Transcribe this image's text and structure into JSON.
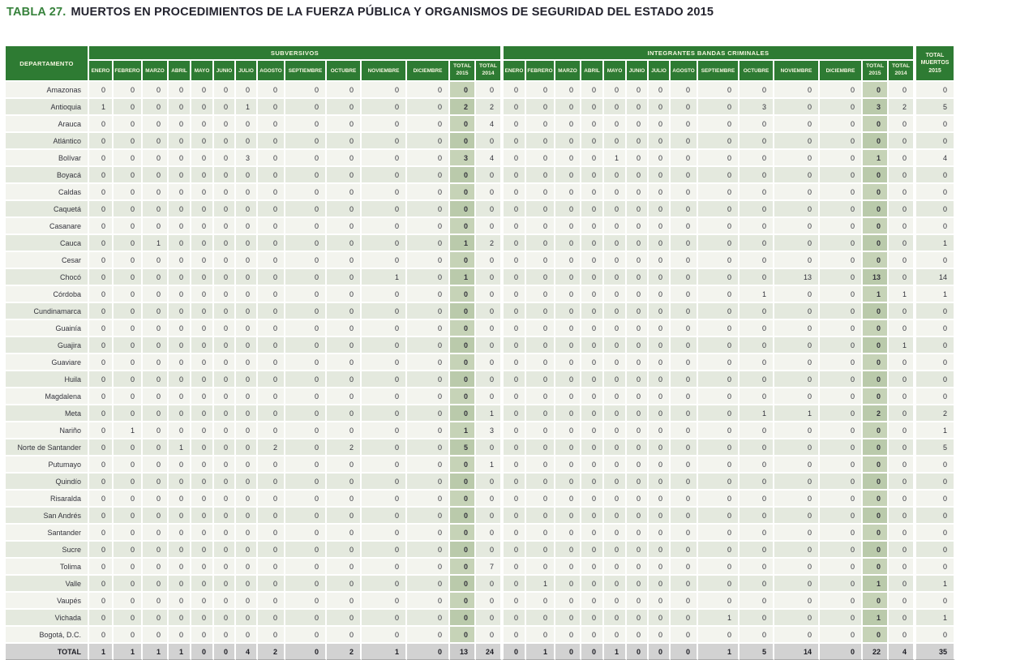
{
  "title": {
    "tag": "TABLA 27.",
    "text": "MUERTOS EN PROCEDIMIENTOS DE LA FUERZA PÚBLICA Y ORGANISMOS DE SEGURIDAD DEL ESTADO 2015"
  },
  "colors": {
    "header_green": "#2E7B33",
    "title_green": "#37823C",
    "row_light": "#F3F4EE",
    "row_dark": "#E4E9DE",
    "total_2015_col_light": "#C6D3B7",
    "total_2015_col_dark": "#BACAAB",
    "total_row_gray": "#D2D2D2"
  },
  "table": {
    "department_header": "DEPARTAMENTO",
    "groups": {
      "subversivos": "SUBVERSIVOS",
      "bandas": "INTEGRANTES BANDAS CRIMINALES",
      "total_muertos": "TOTAL MUERTOS 2015"
    },
    "months": [
      "ENERO",
      "FEBRERO",
      "MARZO",
      "ABRIL",
      "MAYO",
      "JUNIO",
      "JULIO",
      "AGOSTO",
      "SEPTIEMBRE",
      "OCTUBRE",
      "NOVIEMBRE",
      "DICIEMBRE"
    ],
    "total_2015_label": "TOTAL 2015",
    "total_2014_label": "TOTAL 2014",
    "rows": [
      {
        "dept": "Amazonas",
        "sub": [
          0,
          0,
          0,
          0,
          0,
          0,
          0,
          0,
          0,
          0,
          0,
          0
        ],
        "sub_total_2015": 0,
        "sub_total_2014": 0,
        "ban": [
          0,
          0,
          0,
          0,
          0,
          0,
          0,
          0,
          0,
          0,
          0,
          0
        ],
        "ban_total_2015": 0,
        "ban_total_2014": 0,
        "total_muertos": 0
      },
      {
        "dept": "Antioquia",
        "sub": [
          1,
          0,
          0,
          0,
          0,
          0,
          1,
          0,
          0,
          0,
          0,
          0
        ],
        "sub_total_2015": 2,
        "sub_total_2014": 2,
        "ban": [
          0,
          0,
          0,
          0,
          0,
          0,
          0,
          0,
          0,
          3,
          0,
          0
        ],
        "ban_total_2015": 3,
        "ban_total_2014": 2,
        "total_muertos": 5
      },
      {
        "dept": "Arauca",
        "sub": [
          0,
          0,
          0,
          0,
          0,
          0,
          0,
          0,
          0,
          0,
          0,
          0
        ],
        "sub_total_2015": 0,
        "sub_total_2014": 4,
        "ban": [
          0,
          0,
          0,
          0,
          0,
          0,
          0,
          0,
          0,
          0,
          0,
          0
        ],
        "ban_total_2015": 0,
        "ban_total_2014": 0,
        "total_muertos": 0
      },
      {
        "dept": "Atlántico",
        "sub": [
          0,
          0,
          0,
          0,
          0,
          0,
          0,
          0,
          0,
          0,
          0,
          0
        ],
        "sub_total_2015": 0,
        "sub_total_2014": 0,
        "ban": [
          0,
          0,
          0,
          0,
          0,
          0,
          0,
          0,
          0,
          0,
          0,
          0
        ],
        "ban_total_2015": 0,
        "ban_total_2014": 0,
        "total_muertos": 0
      },
      {
        "dept": "Bolívar",
        "sub": [
          0,
          0,
          0,
          0,
          0,
          0,
          3,
          0,
          0,
          0,
          0,
          0
        ],
        "sub_total_2015": 3,
        "sub_total_2014": 4,
        "ban": [
          0,
          0,
          0,
          0,
          1,
          0,
          0,
          0,
          0,
          0,
          0,
          0
        ],
        "ban_total_2015": 1,
        "ban_total_2014": 0,
        "total_muertos": 4
      },
      {
        "dept": "Boyacá",
        "sub": [
          0,
          0,
          0,
          0,
          0,
          0,
          0,
          0,
          0,
          0,
          0,
          0
        ],
        "sub_total_2015": 0,
        "sub_total_2014": 0,
        "ban": [
          0,
          0,
          0,
          0,
          0,
          0,
          0,
          0,
          0,
          0,
          0,
          0
        ],
        "ban_total_2015": 0,
        "ban_total_2014": 0,
        "total_muertos": 0
      },
      {
        "dept": "Caldas",
        "sub": [
          0,
          0,
          0,
          0,
          0,
          0,
          0,
          0,
          0,
          0,
          0,
          0
        ],
        "sub_total_2015": 0,
        "sub_total_2014": 0,
        "ban": [
          0,
          0,
          0,
          0,
          0,
          0,
          0,
          0,
          0,
          0,
          0,
          0
        ],
        "ban_total_2015": 0,
        "ban_total_2014": 0,
        "total_muertos": 0
      },
      {
        "dept": "Caquetá",
        "sub": [
          0,
          0,
          0,
          0,
          0,
          0,
          0,
          0,
          0,
          0,
          0,
          0
        ],
        "sub_total_2015": 0,
        "sub_total_2014": 0,
        "ban": [
          0,
          0,
          0,
          0,
          0,
          0,
          0,
          0,
          0,
          0,
          0,
          0
        ],
        "ban_total_2015": 0,
        "ban_total_2014": 0,
        "total_muertos": 0
      },
      {
        "dept": "Casanare",
        "sub": [
          0,
          0,
          0,
          0,
          0,
          0,
          0,
          0,
          0,
          0,
          0,
          0
        ],
        "sub_total_2015": 0,
        "sub_total_2014": 0,
        "ban": [
          0,
          0,
          0,
          0,
          0,
          0,
          0,
          0,
          0,
          0,
          0,
          0
        ],
        "ban_total_2015": 0,
        "ban_total_2014": 0,
        "total_muertos": 0
      },
      {
        "dept": "Cauca",
        "sub": [
          0,
          0,
          1,
          0,
          0,
          0,
          0,
          0,
          0,
          0,
          0,
          0
        ],
        "sub_total_2015": 1,
        "sub_total_2014": 2,
        "ban": [
          0,
          0,
          0,
          0,
          0,
          0,
          0,
          0,
          0,
          0,
          0,
          0
        ],
        "ban_total_2015": 0,
        "ban_total_2014": 0,
        "total_muertos": 1
      },
      {
        "dept": "Cesar",
        "sub": [
          0,
          0,
          0,
          0,
          0,
          0,
          0,
          0,
          0,
          0,
          0,
          0
        ],
        "sub_total_2015": 0,
        "sub_total_2014": 0,
        "ban": [
          0,
          0,
          0,
          0,
          0,
          0,
          0,
          0,
          0,
          0,
          0,
          0
        ],
        "ban_total_2015": 0,
        "ban_total_2014": 0,
        "total_muertos": 0
      },
      {
        "dept": "Chocó",
        "sub": [
          0,
          0,
          0,
          0,
          0,
          0,
          0,
          0,
          0,
          0,
          1,
          0
        ],
        "sub_total_2015": 1,
        "sub_total_2014": 0,
        "ban": [
          0,
          0,
          0,
          0,
          0,
          0,
          0,
          0,
          0,
          0,
          13,
          0
        ],
        "ban_total_2015": 13,
        "ban_total_2014": 0,
        "total_muertos": 14
      },
      {
        "dept": "Córdoba",
        "sub": [
          0,
          0,
          0,
          0,
          0,
          0,
          0,
          0,
          0,
          0,
          0,
          0
        ],
        "sub_total_2015": 0,
        "sub_total_2014": 0,
        "ban": [
          0,
          0,
          0,
          0,
          0,
          0,
          0,
          0,
          0,
          1,
          0,
          0
        ],
        "ban_total_2015": 1,
        "ban_total_2014": 1,
        "total_muertos": 1
      },
      {
        "dept": "Cundinamarca",
        "sub": [
          0,
          0,
          0,
          0,
          0,
          0,
          0,
          0,
          0,
          0,
          0,
          0
        ],
        "sub_total_2015": 0,
        "sub_total_2014": 0,
        "ban": [
          0,
          0,
          0,
          0,
          0,
          0,
          0,
          0,
          0,
          0,
          0,
          0
        ],
        "ban_total_2015": 0,
        "ban_total_2014": 0,
        "total_muertos": 0
      },
      {
        "dept": "Guainía",
        "sub": [
          0,
          0,
          0,
          0,
          0,
          0,
          0,
          0,
          0,
          0,
          0,
          0
        ],
        "sub_total_2015": 0,
        "sub_total_2014": 0,
        "ban": [
          0,
          0,
          0,
          0,
          0,
          0,
          0,
          0,
          0,
          0,
          0,
          0
        ],
        "ban_total_2015": 0,
        "ban_total_2014": 0,
        "total_muertos": 0
      },
      {
        "dept": "Guajira",
        "sub": [
          0,
          0,
          0,
          0,
          0,
          0,
          0,
          0,
          0,
          0,
          0,
          0
        ],
        "sub_total_2015": 0,
        "sub_total_2014": 0,
        "ban": [
          0,
          0,
          0,
          0,
          0,
          0,
          0,
          0,
          0,
          0,
          0,
          0
        ],
        "ban_total_2015": 0,
        "ban_total_2014": 1,
        "total_muertos": 0
      },
      {
        "dept": "Guaviare",
        "sub": [
          0,
          0,
          0,
          0,
          0,
          0,
          0,
          0,
          0,
          0,
          0,
          0
        ],
        "sub_total_2015": 0,
        "sub_total_2014": 0,
        "ban": [
          0,
          0,
          0,
          0,
          0,
          0,
          0,
          0,
          0,
          0,
          0,
          0
        ],
        "ban_total_2015": 0,
        "ban_total_2014": 0,
        "total_muertos": 0
      },
      {
        "dept": "Huila",
        "sub": [
          0,
          0,
          0,
          0,
          0,
          0,
          0,
          0,
          0,
          0,
          0,
          0
        ],
        "sub_total_2015": 0,
        "sub_total_2014": 0,
        "ban": [
          0,
          0,
          0,
          0,
          0,
          0,
          0,
          0,
          0,
          0,
          0,
          0
        ],
        "ban_total_2015": 0,
        "ban_total_2014": 0,
        "total_muertos": 0
      },
      {
        "dept": "Magdalena",
        "sub": [
          0,
          0,
          0,
          0,
          0,
          0,
          0,
          0,
          0,
          0,
          0,
          0
        ],
        "sub_total_2015": 0,
        "sub_total_2014": 0,
        "ban": [
          0,
          0,
          0,
          0,
          0,
          0,
          0,
          0,
          0,
          0,
          0,
          0
        ],
        "ban_total_2015": 0,
        "ban_total_2014": 0,
        "total_muertos": 0
      },
      {
        "dept": "Meta",
        "sub": [
          0,
          0,
          0,
          0,
          0,
          0,
          0,
          0,
          0,
          0,
          0,
          0
        ],
        "sub_total_2015": 0,
        "sub_total_2014": 1,
        "ban": [
          0,
          0,
          0,
          0,
          0,
          0,
          0,
          0,
          0,
          1,
          1,
          0
        ],
        "ban_total_2015": 2,
        "ban_total_2014": 0,
        "total_muertos": 2
      },
      {
        "dept": "Nariño",
        "sub": [
          0,
          1,
          0,
          0,
          0,
          0,
          0,
          0,
          0,
          0,
          0,
          0
        ],
        "sub_total_2015": 1,
        "sub_total_2014": 3,
        "ban": [
          0,
          0,
          0,
          0,
          0,
          0,
          0,
          0,
          0,
          0,
          0,
          0
        ],
        "ban_total_2015": 0,
        "ban_total_2014": 0,
        "total_muertos": 1
      },
      {
        "dept": "Norte de Santander",
        "sub": [
          0,
          0,
          0,
          1,
          0,
          0,
          0,
          2,
          0,
          2,
          0,
          0
        ],
        "sub_total_2015": 5,
        "sub_total_2014": 0,
        "ban": [
          0,
          0,
          0,
          0,
          0,
          0,
          0,
          0,
          0,
          0,
          0,
          0
        ],
        "ban_total_2015": 0,
        "ban_total_2014": 0,
        "total_muertos": 5
      },
      {
        "dept": "Putumayo",
        "sub": [
          0,
          0,
          0,
          0,
          0,
          0,
          0,
          0,
          0,
          0,
          0,
          0
        ],
        "sub_total_2015": 0,
        "sub_total_2014": 1,
        "ban": [
          0,
          0,
          0,
          0,
          0,
          0,
          0,
          0,
          0,
          0,
          0,
          0
        ],
        "ban_total_2015": 0,
        "ban_total_2014": 0,
        "total_muertos": 0
      },
      {
        "dept": "Quindío",
        "sub": [
          0,
          0,
          0,
          0,
          0,
          0,
          0,
          0,
          0,
          0,
          0,
          0
        ],
        "sub_total_2015": 0,
        "sub_total_2014": 0,
        "ban": [
          0,
          0,
          0,
          0,
          0,
          0,
          0,
          0,
          0,
          0,
          0,
          0
        ],
        "ban_total_2015": 0,
        "ban_total_2014": 0,
        "total_muertos": 0
      },
      {
        "dept": "Risaralda",
        "sub": [
          0,
          0,
          0,
          0,
          0,
          0,
          0,
          0,
          0,
          0,
          0,
          0
        ],
        "sub_total_2015": 0,
        "sub_total_2014": 0,
        "ban": [
          0,
          0,
          0,
          0,
          0,
          0,
          0,
          0,
          0,
          0,
          0,
          0
        ],
        "ban_total_2015": 0,
        "ban_total_2014": 0,
        "total_muertos": 0
      },
      {
        "dept": "San Andrés",
        "sub": [
          0,
          0,
          0,
          0,
          0,
          0,
          0,
          0,
          0,
          0,
          0,
          0
        ],
        "sub_total_2015": 0,
        "sub_total_2014": 0,
        "ban": [
          0,
          0,
          0,
          0,
          0,
          0,
          0,
          0,
          0,
          0,
          0,
          0
        ],
        "ban_total_2015": 0,
        "ban_total_2014": 0,
        "total_muertos": 0
      },
      {
        "dept": "Santander",
        "sub": [
          0,
          0,
          0,
          0,
          0,
          0,
          0,
          0,
          0,
          0,
          0,
          0
        ],
        "sub_total_2015": 0,
        "sub_total_2014": 0,
        "ban": [
          0,
          0,
          0,
          0,
          0,
          0,
          0,
          0,
          0,
          0,
          0,
          0
        ],
        "ban_total_2015": 0,
        "ban_total_2014": 0,
        "total_muertos": 0
      },
      {
        "dept": "Sucre",
        "sub": [
          0,
          0,
          0,
          0,
          0,
          0,
          0,
          0,
          0,
          0,
          0,
          0
        ],
        "sub_total_2015": 0,
        "sub_total_2014": 0,
        "ban": [
          0,
          0,
          0,
          0,
          0,
          0,
          0,
          0,
          0,
          0,
          0,
          0
        ],
        "ban_total_2015": 0,
        "ban_total_2014": 0,
        "total_muertos": 0
      },
      {
        "dept": "Tolima",
        "sub": [
          0,
          0,
          0,
          0,
          0,
          0,
          0,
          0,
          0,
          0,
          0,
          0
        ],
        "sub_total_2015": 0,
        "sub_total_2014": 7,
        "ban": [
          0,
          0,
          0,
          0,
          0,
          0,
          0,
          0,
          0,
          0,
          0,
          0
        ],
        "ban_total_2015": 0,
        "ban_total_2014": 0,
        "total_muertos": 0
      },
      {
        "dept": "Valle",
        "sub": [
          0,
          0,
          0,
          0,
          0,
          0,
          0,
          0,
          0,
          0,
          0,
          0
        ],
        "sub_total_2015": 0,
        "sub_total_2014": 0,
        "ban": [
          0,
          1,
          0,
          0,
          0,
          0,
          0,
          0,
          0,
          0,
          0,
          0
        ],
        "ban_total_2015": 1,
        "ban_total_2014": 0,
        "total_muertos": 1
      },
      {
        "dept": "Vaupés",
        "sub": [
          0,
          0,
          0,
          0,
          0,
          0,
          0,
          0,
          0,
          0,
          0,
          0
        ],
        "sub_total_2015": 0,
        "sub_total_2014": 0,
        "ban": [
          0,
          0,
          0,
          0,
          0,
          0,
          0,
          0,
          0,
          0,
          0,
          0
        ],
        "ban_total_2015": 0,
        "ban_total_2014": 0,
        "total_muertos": 0
      },
      {
        "dept": "Vichada",
        "sub": [
          0,
          0,
          0,
          0,
          0,
          0,
          0,
          0,
          0,
          0,
          0,
          0
        ],
        "sub_total_2015": 0,
        "sub_total_2014": 0,
        "ban": [
          0,
          0,
          0,
          0,
          0,
          0,
          0,
          0,
          1,
          0,
          0,
          0
        ],
        "ban_total_2015": 1,
        "ban_total_2014": 0,
        "total_muertos": 1
      },
      {
        "dept": "Bogotá, D.C.",
        "sub": [
          0,
          0,
          0,
          0,
          0,
          0,
          0,
          0,
          0,
          0,
          0,
          0
        ],
        "sub_total_2015": 0,
        "sub_total_2014": 0,
        "ban": [
          0,
          0,
          0,
          0,
          0,
          0,
          0,
          0,
          0,
          0,
          0,
          0
        ],
        "ban_total_2015": 0,
        "ban_total_2014": 0,
        "total_muertos": 0
      }
    ],
    "total_row": {
      "dept": "TOTAL",
      "sub": [
        1,
        1,
        1,
        1,
        0,
        0,
        4,
        2,
        0,
        2,
        1,
        0
      ],
      "sub_total_2015": 13,
      "sub_total_2014": 24,
      "ban": [
        0,
        1,
        0,
        0,
        1,
        0,
        0,
        0,
        1,
        5,
        14,
        0
      ],
      "ban_total_2015": 22,
      "ban_total_2014": 4,
      "total_muertos": 35
    }
  }
}
